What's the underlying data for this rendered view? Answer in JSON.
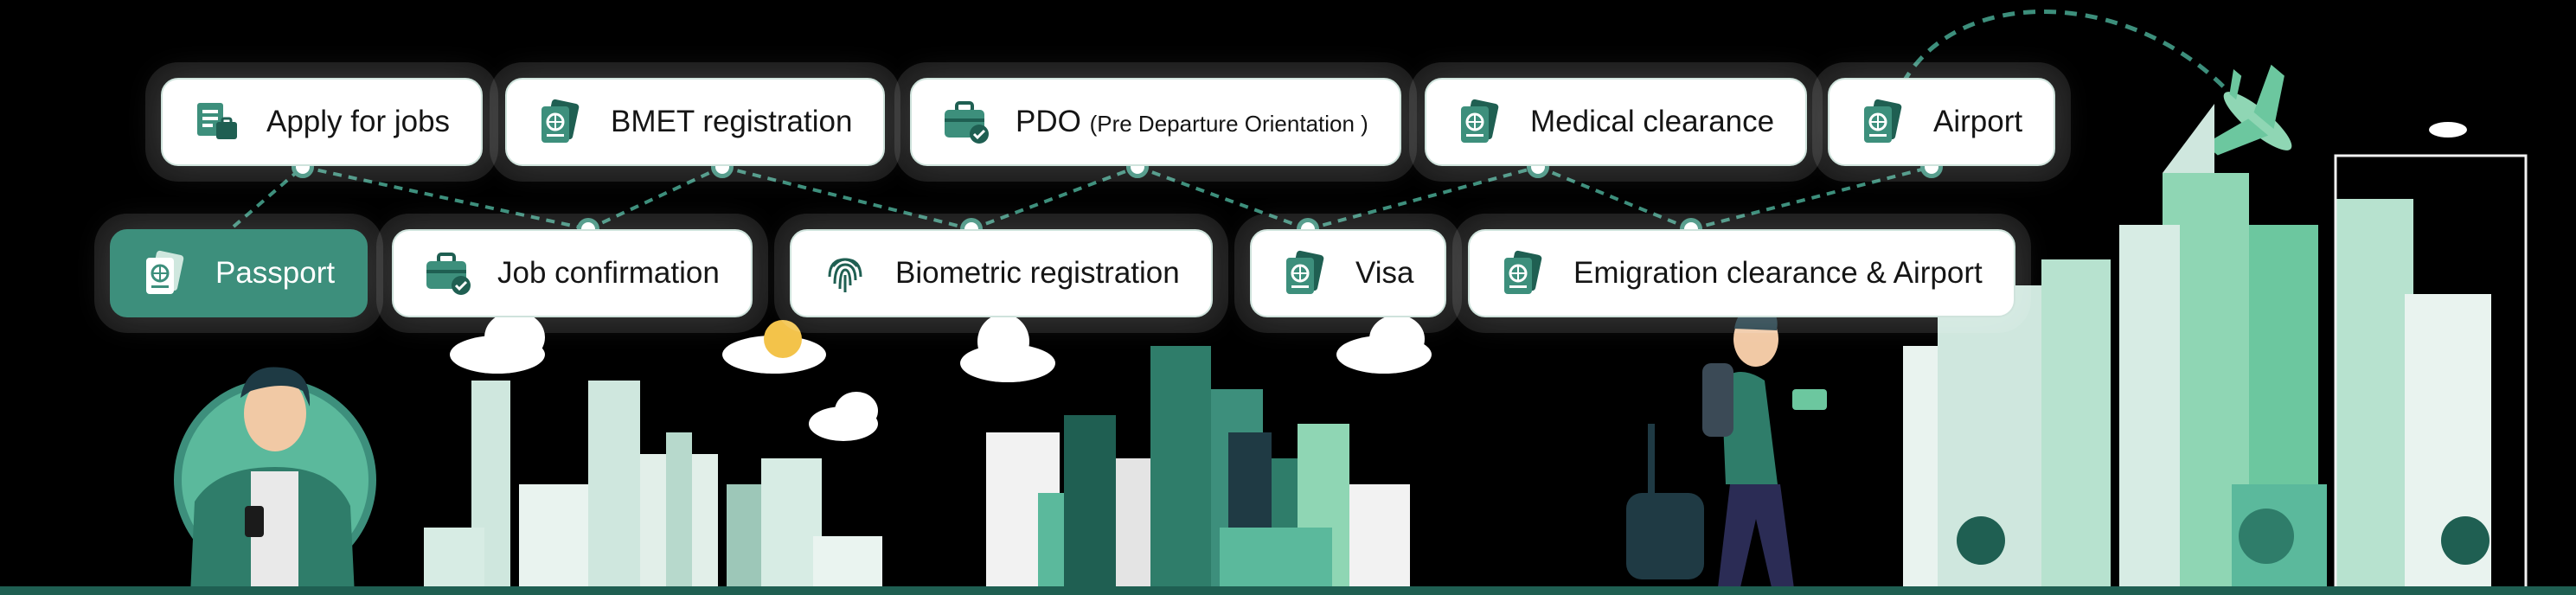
{
  "colors": {
    "accent": "#3d8f7c",
    "accent_dark": "#1f5f52",
    "light": "#cfe7de",
    "border": "#cfe3dc"
  },
  "steps_top": [
    {
      "label": "Apply for jobs",
      "icon": "clipboard-icon"
    },
    {
      "label": "BMET registration",
      "icon": "passport-icon"
    },
    {
      "label": "PDO",
      "label_small": "(Pre Departure Orientation )",
      "icon": "briefcase-check-icon"
    },
    {
      "label": "Medical clearance",
      "icon": "passport-icon"
    },
    {
      "label": "Airport",
      "icon": "passport-icon"
    }
  ],
  "steps_bottom": [
    {
      "label": "Passport",
      "icon": "passport-icon",
      "active": true
    },
    {
      "label": "Job confirmation",
      "icon": "briefcase-check-icon"
    },
    {
      "label": "Biometric registration",
      "icon": "fingerprint-icon"
    },
    {
      "label": "Visa",
      "icon": "passport-icon"
    },
    {
      "label": "Emigration clearance & Airport",
      "icon": "passport-icon"
    }
  ]
}
